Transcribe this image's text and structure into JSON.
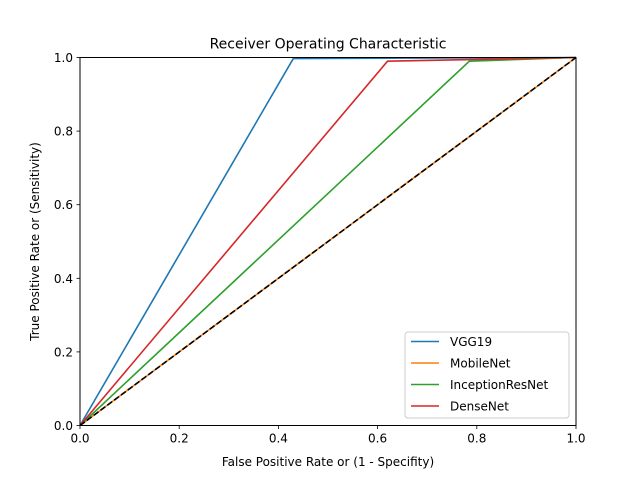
{
  "chart_data": {
    "type": "line",
    "title": "Receiver Operating Characteristic",
    "xlabel": "False Positive Rate or (1 - Specifity)",
    "ylabel": "True Positive Rate or (Sensitivity)",
    "xlim": [
      0,
      1
    ],
    "ylim": [
      0,
      1
    ],
    "xticks": [
      "0.0",
      "0.2",
      "0.4",
      "0.6",
      "0.8",
      "1.0"
    ],
    "yticks": [
      "0.0",
      "0.2",
      "0.4",
      "0.6",
      "0.8",
      "1.0"
    ],
    "grid": false,
    "legend_position": "bottom-right",
    "series": [
      {
        "name": "VGG19",
        "color": "#1f77b4",
        "x": [
          0.0,
          0.43,
          1.0
        ],
        "y": [
          0.0,
          0.997,
          1.0
        ]
      },
      {
        "name": "MobileNet",
        "color": "#ff7f0e",
        "x": [
          0.0,
          1.0
        ],
        "y": [
          0.0,
          1.0
        ]
      },
      {
        "name": "InceptionResNet",
        "color": "#2ca02c",
        "x": [
          0.0,
          0.785,
          1.0
        ],
        "y": [
          0.0,
          0.99,
          1.0
        ]
      },
      {
        "name": "DenseNet",
        "color": "#d62728",
        "x": [
          0.0,
          0.62,
          1.0
        ],
        "y": [
          0.0,
          0.99,
          1.0
        ]
      }
    ],
    "reference_line": {
      "style": "dashed",
      "color": "#000000",
      "x": [
        0,
        1
      ],
      "y": [
        0,
        1
      ]
    }
  }
}
